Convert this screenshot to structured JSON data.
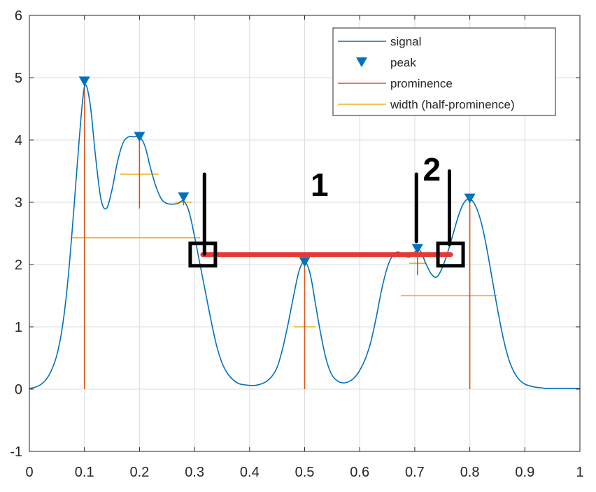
{
  "chart_data": {
    "type": "line",
    "xlim": [
      0,
      1
    ],
    "ylim": [
      -1,
      6
    ],
    "x_ticks": [
      0,
      0.1,
      0.2,
      0.3,
      0.4,
      0.5,
      0.6,
      0.7,
      0.8,
      0.9,
      1
    ],
    "x_tick_labels": [
      "0",
      "0.1",
      "0.2",
      "0.3",
      "0.4",
      "0.5",
      "0.6",
      "0.7",
      "0.8",
      "0.9",
      "1"
    ],
    "y_ticks": [
      -1,
      0,
      1,
      2,
      3,
      4,
      5,
      6
    ],
    "y_tick_labels": [
      "-1",
      "0",
      "1",
      "2",
      "3",
      "4",
      "5",
      "6"
    ],
    "grid": true,
    "legend": {
      "placement": "top-right",
      "entries": [
        {
          "label": "signal",
          "style": "line",
          "color": "#0072BD"
        },
        {
          "label": "peak",
          "style": "triangle-down",
          "color": "#0072BD"
        },
        {
          "label": "prominence",
          "style": "line",
          "color": "#D95319"
        },
        {
          "label": "width (half-prominence)",
          "style": "line",
          "color": "#EDB120"
        }
      ]
    },
    "series": [
      {
        "name": "signal",
        "color": "#0072BD",
        "x": [
          0,
          0.01,
          0.02,
          0.03,
          0.04,
          0.05,
          0.06,
          0.07,
          0.08,
          0.09,
          0.1,
          0.11,
          0.12,
          0.13,
          0.14,
          0.15,
          0.16,
          0.17,
          0.18,
          0.19,
          0.2,
          0.21,
          0.22,
          0.23,
          0.24,
          0.25,
          0.26,
          0.27,
          0.28,
          0.29,
          0.3,
          0.31,
          0.32,
          0.33,
          0.34,
          0.35,
          0.36,
          0.37,
          0.38,
          0.39,
          0.4,
          0.41,
          0.42,
          0.43,
          0.44,
          0.45,
          0.46,
          0.47,
          0.48,
          0.49,
          0.5,
          0.51,
          0.52,
          0.53,
          0.54,
          0.55,
          0.56,
          0.57,
          0.58,
          0.59,
          0.6,
          0.61,
          0.62,
          0.63,
          0.64,
          0.65,
          0.66,
          0.67,
          0.68,
          0.69,
          0.7,
          0.71,
          0.72,
          0.73,
          0.74,
          0.75,
          0.76,
          0.77,
          0.78,
          0.79,
          0.8,
          0.81,
          0.82,
          0.83,
          0.84,
          0.85,
          0.86,
          0.87,
          0.88,
          0.89,
          0.9,
          0.91,
          0.92,
          0.93,
          0.94,
          0.95,
          0.96,
          0.97,
          0.98,
          0.99,
          1
        ],
        "y": [
          0.01,
          0.03,
          0.07,
          0.15,
          0.3,
          0.55,
          1.0,
          1.75,
          2.8,
          3.95,
          4.85,
          4.6,
          3.75,
          3.05,
          2.9,
          3.2,
          3.65,
          3.95,
          4.05,
          4.05,
          4.05,
          3.9,
          3.55,
          3.25,
          3.05,
          2.98,
          2.97,
          2.98,
          3.02,
          2.85,
          2.45,
          2.0,
          1.55,
          1.1,
          0.7,
          0.42,
          0.25,
          0.15,
          0.09,
          0.07,
          0.06,
          0.06,
          0.08,
          0.12,
          0.2,
          0.35,
          0.65,
          1.05,
          1.5,
          1.9,
          2.05,
          1.85,
          1.35,
          0.85,
          0.45,
          0.22,
          0.13,
          0.1,
          0.12,
          0.18,
          0.3,
          0.48,
          0.75,
          1.15,
          1.6,
          1.95,
          2.15,
          2.2,
          2.15,
          2.12,
          2.2,
          2.22,
          2.02,
          1.85,
          1.8,
          1.95,
          2.2,
          2.5,
          2.8,
          3.0,
          3.05,
          2.95,
          2.7,
          2.3,
          1.8,
          1.3,
          0.85,
          0.5,
          0.28,
          0.15,
          0.08,
          0.05,
          0.03,
          0.02,
          0.01,
          0.01,
          0.01,
          0.01,
          0.01,
          0.01,
          0.01
        ]
      }
    ],
    "peaks": [
      {
        "x": 0.1,
        "y": 4.94
      },
      {
        "x": 0.2,
        "y": 4.05
      },
      {
        "x": 0.28,
        "y": 3.08
      },
      {
        "x": 0.5,
        "y": 2.04
      },
      {
        "x": 0.705,
        "y": 2.25
      },
      {
        "x": 0.8,
        "y": 3.06
      }
    ],
    "prominence_lines": [
      {
        "x": 0.1,
        "y0": 0,
        "y1": 4.94
      },
      {
        "x": 0.2,
        "y0": 2.9,
        "y1": 4.05
      },
      {
        "x": 0.28,
        "y0": 2.95,
        "y1": 3.08
      },
      {
        "x": 0.5,
        "y0": 0,
        "y1": 2.04
      },
      {
        "x": 0.705,
        "y0": 1.83,
        "y1": 2.25
      },
      {
        "x": 0.8,
        "y0": 0,
        "y1": 3.06
      }
    ],
    "width_lines": [
      {
        "y": 2.43,
        "x0": 0.075,
        "x1": 0.31
      },
      {
        "y": 3.45,
        "x0": 0.165,
        "x1": 0.235
      },
      {
        "y": 3.0,
        "x0": 0.265,
        "x1": 0.295
      },
      {
        "y": 1.0,
        "x0": 0.48,
        "x1": 0.52
      },
      {
        "y": 2.02,
        "x0": 0.69,
        "x1": 0.72
      },
      {
        "y": 1.5,
        "x0": 0.675,
        "x1": 0.85
      }
    ],
    "annotations": {
      "red_line": {
        "x0": 0.315,
        "x1": 0.765,
        "y": 2.16,
        "color": "#E53935"
      },
      "boxes": [
        {
          "x": 0.315,
          "y": 2.16
        },
        {
          "x": 0.765,
          "y": 2.16
        }
      ],
      "vertical_strokes": [
        {
          "x": 0.318,
          "y0": 2.17,
          "y1": 3.45
        },
        {
          "x": 0.703,
          "y0": 2.37,
          "y1": 3.45
        },
        {
          "x": 0.763,
          "y0": 2.32,
          "y1": 3.5
        }
      ],
      "labels": [
        {
          "text": "1",
          "x": 0.527,
          "y": 3.1
        },
        {
          "text": "2",
          "x": 0.731,
          "y": 3.35
        }
      ]
    }
  }
}
